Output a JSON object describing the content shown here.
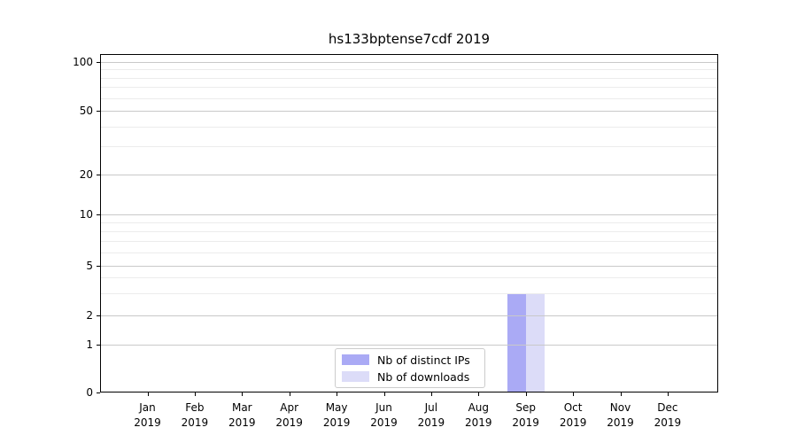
{
  "chart_data": {
    "type": "bar",
    "title": "hs133bptense7cdf 2019",
    "categories": [
      "Jan 2019",
      "Feb 2019",
      "Mar 2019",
      "Apr 2019",
      "May 2019",
      "Jun 2019",
      "Jul 2019",
      "Aug 2019",
      "Sep 2019",
      "Oct 2019",
      "Nov 2019",
      "Dec 2019"
    ],
    "series": [
      {
        "name": "Nb of distinct IPs",
        "color": "#aaaaf5",
        "values": [
          0,
          0,
          0,
          0,
          0,
          0,
          0,
          0,
          3,
          0,
          0,
          0
        ]
      },
      {
        "name": "Nb of downloads",
        "color": "#dcdcf8",
        "values": [
          0,
          0,
          0,
          0,
          0,
          0,
          0,
          0,
          3,
          0,
          0,
          0
        ]
      }
    ],
    "yticks": [
      0,
      1,
      2,
      5,
      10,
      20,
      50,
      100
    ],
    "yticks_minor": [
      3,
      4,
      6,
      7,
      8,
      9,
      30,
      40,
      60,
      70,
      80,
      90
    ],
    "ylim": [
      0,
      100
    ],
    "yscale": "symlog",
    "grid": true,
    "legend_position": "lower center"
  }
}
